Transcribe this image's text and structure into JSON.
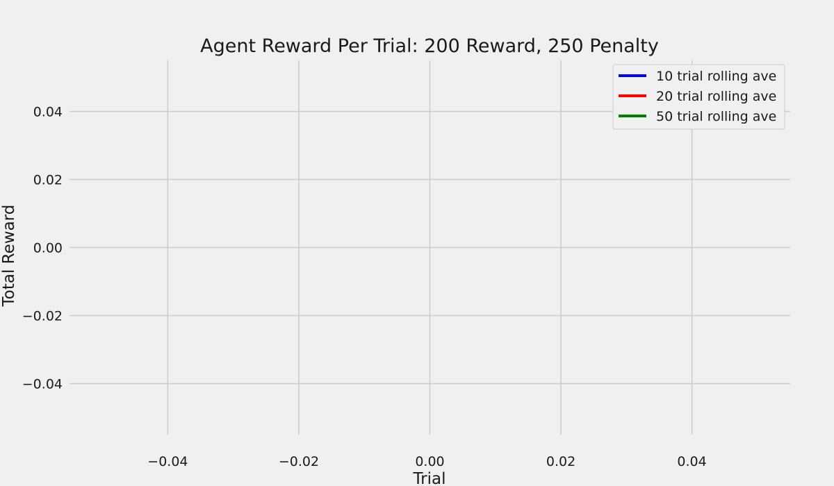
{
  "chart_data": {
    "type": "line",
    "title": "Agent Reward Per Trial: 200 Reward, 250 Penalty",
    "xlabel": "Trial",
    "ylabel": "Total Reward",
    "xlim": [
      -0.055,
      0.055
    ],
    "ylim": [
      -0.055,
      0.055
    ],
    "x_ticks": [
      -0.04,
      -0.02,
      0.0,
      0.02,
      0.04
    ],
    "x_tick_labels": [
      "−0.04",
      "−0.02",
      "0.00",
      "0.02",
      "0.04"
    ],
    "y_ticks": [
      0.04,
      0.02,
      0.0,
      -0.02,
      -0.04
    ],
    "y_tick_labels": [
      "0.04",
      "0.02",
      "0.00",
      "−0.02",
      "−0.04"
    ],
    "grid": true,
    "legend_position": "top-right",
    "series": [
      {
        "name": "10 trial rolling ave",
        "color": "#0000ff",
        "x": [],
        "y": []
      },
      {
        "name": "20 trial rolling ave",
        "color": "#ff0000",
        "x": [],
        "y": []
      },
      {
        "name": "50 trial rolling ave",
        "color": "#008000",
        "x": [],
        "y": []
      }
    ],
    "colors": {
      "background": "#f0f0f0",
      "grid": "#cbcbcb",
      "text": "#1a1a1a"
    }
  }
}
